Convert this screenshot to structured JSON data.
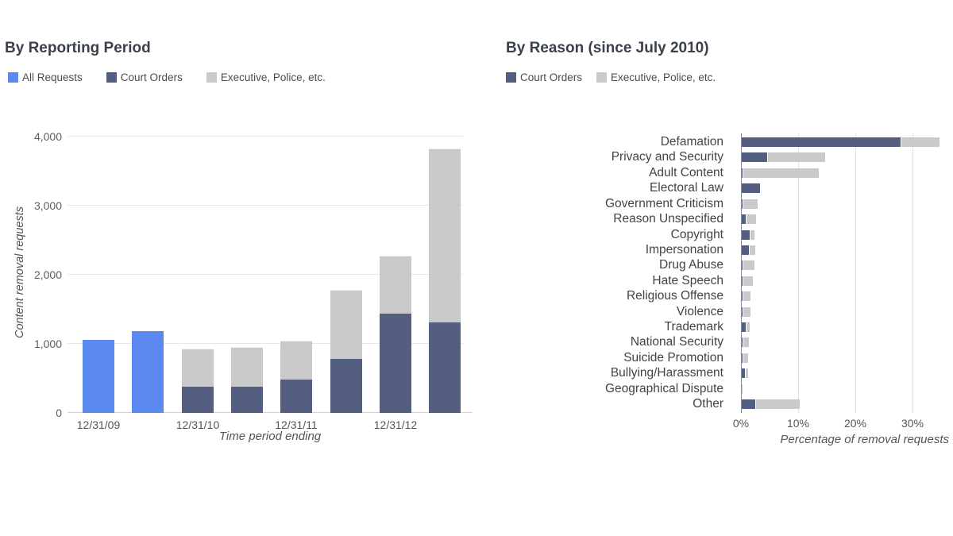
{
  "page": {
    "background": "#ffffff"
  },
  "colors": {
    "all_requests_blue": "#5b89f0",
    "court_orders_navy": "#535e80",
    "executive_gray": "#c9c9c9",
    "gridline": "#e7e7e7",
    "baseline": "#d2d2d2",
    "axis_line": "#8c8c8c",
    "title_text": "#3a414d",
    "legend_text": "#4c4c4c",
    "tick_text": "#5d5d5d",
    "background": "#ffffff"
  },
  "chart_data": [
    {
      "type": "bar",
      "stacked": true,
      "title": "By Reporting Period",
      "xlabel": "Time period ending",
      "ylabel": "Content removal requests",
      "ylim": [
        0,
        4000
      ],
      "ytick_step": 1000,
      "ytick_labels": [
        "0",
        "1,000",
        "2,000",
        "3,000",
        "4,000"
      ],
      "grid": "horizontal",
      "legend_position": "top",
      "legend": [
        {
          "label": "All Requests",
          "color": "#5b89f0"
        },
        {
          "label": "Court Orders",
          "color": "#535e80"
        },
        {
          "label": "Executive, Police, etc.",
          "color": "#c9c9c9"
        }
      ],
      "categories": [
        "12/31/09",
        "",
        "12/31/10",
        "",
        "12/31/11",
        "",
        "12/31/12",
        ""
      ],
      "series": [
        {
          "name": "All Requests",
          "values": [
            1060,
            1180,
            0,
            0,
            0,
            0,
            0,
            0
          ]
        },
        {
          "name": "Court Orders",
          "values": [
            0,
            0,
            380,
            380,
            480,
            780,
            1440,
            1310
          ]
        },
        {
          "name": "Executive, Police, etc.",
          "values": [
            0,
            0,
            550,
            570,
            565,
            1000,
            840,
            2520
          ]
        }
      ]
    },
    {
      "type": "bar-horizontal",
      "stacked": true,
      "title": "By Reason (since July 2010)",
      "xlabel": "Percentage of removal requests",
      "xlim": [
        0,
        35
      ],
      "xtick_values": [
        0,
        10,
        20,
        30
      ],
      "xtick_labels": [
        "0%",
        "10%",
        "20%",
        "30%"
      ],
      "grid": "vertical",
      "legend_position": "top",
      "legend": [
        {
          "label": "Court Orders",
          "color": "#535e80"
        },
        {
          "label": "Executive, Police, etc.",
          "color": "#c9c9c9"
        }
      ],
      "categories": [
        "Defamation",
        "Privacy and Security",
        "Adult Content",
        "Electoral Law",
        "Government Criticism",
        "Reason Unspecified",
        "Copyright",
        "Impersonation",
        "Drug Abuse",
        "Hate Speech",
        "Religious Offense",
        "Violence",
        "Trademark",
        "National Security",
        "Suicide Promotion",
        "Bullying/Harassment",
        "Geographical Dispute",
        "Other"
      ],
      "series": [
        {
          "name": "Court Orders",
          "values": [
            27.8,
            4.4,
            0.2,
            3.2,
            0.2,
            0.7,
            1.4,
            1.3,
            0.2,
            0.2,
            0.2,
            0.2,
            0.7,
            0.2,
            0.1,
            0.5,
            0,
            2.3
          ]
        },
        {
          "name": "Executive, Police, etc.",
          "values": [
            6.6,
            10.0,
            13.2,
            0,
            2.5,
            1.6,
            0.7,
            1.0,
            1.9,
            1.7,
            1.2,
            1.2,
            0.5,
            1.0,
            0.9,
            0.4,
            0.1,
            7.7
          ]
        }
      ]
    }
  ]
}
